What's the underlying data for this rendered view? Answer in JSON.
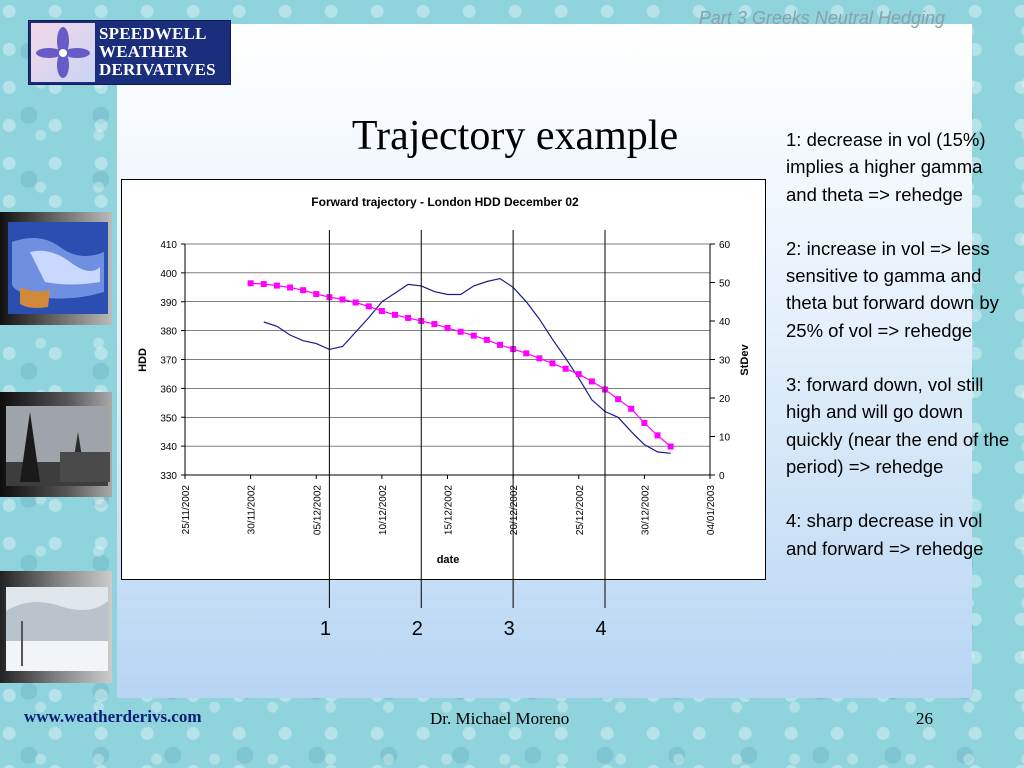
{
  "header": {
    "section_title": "Part 3 Greeks Neutral Hedging"
  },
  "logo": {
    "line1": "SPEEDWELL",
    "line2": "WEATHER",
    "line3": "DERIVATIVES"
  },
  "slide": {
    "title": "Trajectory example"
  },
  "notes": [
    "1: decrease in vol (15%) implies a higher gamma and theta => rehedge",
    "2: increase in vol => less sensitive to gamma and theta but forward down by 25% of vol => rehedge",
    "3: forward down, vol still high and will go down quickly (near the end of the period) => rehedge",
    "4: sharp decrease in vol and forward => rehedge"
  ],
  "markers": {
    "labels": [
      "1",
      "2",
      "3",
      "4"
    ],
    "dates": [
      "06/12/2002",
      "13/12/2002",
      "20/12/2002",
      "27/12/2002"
    ]
  },
  "footer": {
    "url": "www.weatherderivs.com",
    "author": "Dr. Michael Moreno",
    "page": "26"
  },
  "colors": {
    "hdd_line": "#1a1a8c",
    "stdev_line": "#ff00ff",
    "marker_lines": "#000000"
  },
  "chart_data": {
    "type": "line",
    "title": "Forward trajectory - London HDD December 02",
    "xlabel": "date",
    "ylabel": "HDD",
    "y2label": "StDev",
    "x_ticks": [
      "25/11/2002",
      "30/11/2002",
      "05/12/2002",
      "10/12/2002",
      "15/12/2002",
      "20/12/2002",
      "25/12/2002",
      "30/12/2002",
      "04/01/2003"
    ],
    "xlim": [
      "25/11/2002",
      "04/01/2003"
    ],
    "ylim": [
      330,
      410
    ],
    "y_ticks": [
      330,
      340,
      350,
      360,
      370,
      380,
      390,
      400,
      410
    ],
    "y2lim": [
      0,
      60
    ],
    "y2_ticks": [
      0,
      10,
      20,
      30,
      40,
      50,
      60
    ],
    "grid": "horizontal",
    "series": [
      {
        "axis": "left",
        "x": [
          "01/12/2002",
          "02/12/2002",
          "03/12/2002",
          "04/12/2002",
          "05/12/2002",
          "06/12/2002",
          "07/12/2002",
          "08/12/2002",
          "09/12/2002",
          "10/12/2002",
          "11/12/2002",
          "12/12/2002",
          "13/12/2002",
          "14/12/2002",
          "15/12/2002",
          "16/12/2002",
          "17/12/2002",
          "18/12/2002",
          "19/12/2002",
          "20/12/2002",
          "21/12/2002",
          "22/12/2002",
          "23/12/2002",
          "24/12/2002",
          "25/12/2002",
          "26/12/2002",
          "27/12/2002",
          "28/12/2002",
          "29/12/2002",
          "30/12/2002",
          "31/12/2002",
          "01/01/2003"
        ],
        "values": [
          383,
          381.5,
          378.5,
          376.5,
          375.5,
          373.5,
          374.5,
          379.5,
          384.5,
          390,
          393,
          396,
          395.5,
          393.5,
          392.5,
          392.5,
          395.5,
          397,
          398,
          395,
          390,
          384,
          377,
          370.5,
          363.5,
          356,
          352,
          350,
          345,
          340.5,
          338,
          337.5
        ]
      },
      {
        "axis": "right",
        "x": [
          "30/11/2002",
          "01/12/2002",
          "02/12/2002",
          "03/12/2002",
          "04/12/2002",
          "05/12/2002",
          "06/12/2002",
          "07/12/2002",
          "08/12/2002",
          "09/12/2002",
          "10/12/2002",
          "11/12/2002",
          "12/12/2002",
          "13/12/2002",
          "14/12/2002",
          "15/12/2002",
          "16/12/2002",
          "17/12/2002",
          "18/12/2002",
          "19/12/2002",
          "20/12/2002",
          "21/12/2002",
          "22/12/2002",
          "23/12/2002",
          "24/12/2002",
          "25/12/2002",
          "26/12/2002",
          "27/12/2002",
          "28/12/2002",
          "29/12/2002",
          "30/12/2002",
          "31/12/2002",
          "01/01/2003"
        ],
        "values": [
          49.8,
          49.6,
          49.2,
          48.7,
          48.0,
          47.0,
          46.2,
          45.6,
          44.8,
          43.8,
          42.6,
          41.6,
          40.8,
          40.0,
          39.2,
          38.2,
          37.2,
          36.2,
          35.1,
          33.8,
          32.7,
          31.6,
          30.3,
          29.0,
          27.6,
          26.2,
          24.3,
          22.2,
          19.7,
          17.2,
          13.5,
          10.3,
          7.4
        ]
      }
    ]
  }
}
